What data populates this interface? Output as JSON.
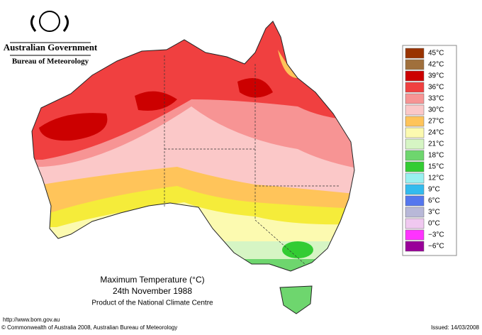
{
  "header": {
    "government": "Australian Government",
    "bureau": "Bureau of Meteorology"
  },
  "map": {
    "title": "Maximum Temperature (°C)",
    "date": "24th November 1988",
    "product": "Product of the National Climate Centre"
  },
  "legend": [
    {
      "label": "45°C",
      "color": "#993300"
    },
    {
      "label": "42°C",
      "color": "#a0703c"
    },
    {
      "label": "39°C",
      "color": "#cc0000"
    },
    {
      "label": "36°C",
      "color": "#f04040"
    },
    {
      "label": "33°C",
      "color": "#f79494"
    },
    {
      "label": "30°C",
      "color": "#fbc8c8"
    },
    {
      "label": "27°C",
      "color": "#ffc45a"
    },
    {
      "label": "24°C",
      "color": "#fcfab0"
    },
    {
      "label": "21°C",
      "color": "#d6f5c4"
    },
    {
      "label": "18°C",
      "color": "#6ed66e"
    },
    {
      "label": "15°C",
      "color": "#33cc33"
    },
    {
      "label": "12°C",
      "color": "#99f0f0"
    },
    {
      "label": "9°C",
      "color": "#33bbee"
    },
    {
      "label": "6°C",
      "color": "#5577ee"
    },
    {
      "label": "3°C",
      "color": "#b8b8d8"
    },
    {
      "label": "0°C",
      "color": "#f0c8f0"
    },
    {
      "label": "−3°C",
      "color": "#ff33ff"
    },
    {
      "label": "−6°C",
      "color": "#990099"
    }
  ],
  "footer": {
    "url": "http://www.bom.gov.au",
    "copyright": "© Commonwealth of Australia 2008, Australian Bureau of Meteorology",
    "issued": "Issued: 14/03/2008"
  }
}
